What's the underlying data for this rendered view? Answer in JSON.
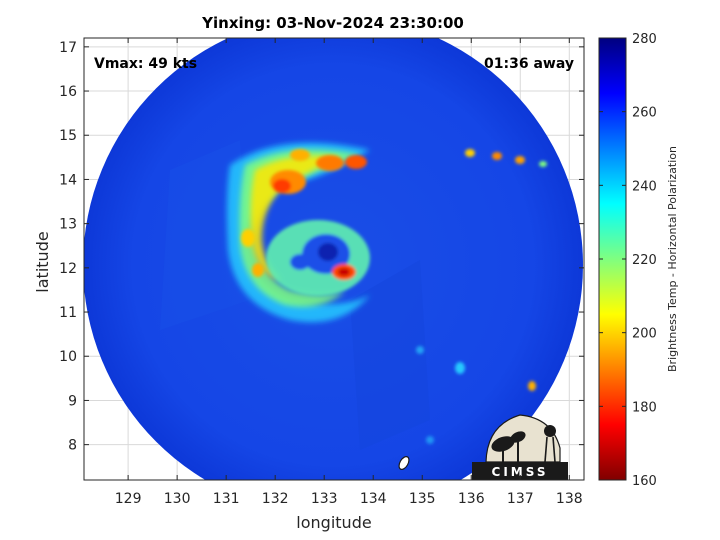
{
  "chart_data": {
    "type": "heatmap",
    "title": "Yinxing: 03-Nov-2024 23:30:00",
    "xlabel": "longitude",
    "ylabel": "latitude",
    "xlim": [
      128.1,
      138.3
    ],
    "ylim": [
      7.2,
      17.2
    ],
    "xticks": [
      129,
      130,
      131,
      132,
      133,
      134,
      135,
      136,
      137,
      138
    ],
    "yticks": [
      8,
      9,
      10,
      11,
      12,
      13,
      14,
      15,
      16,
      17
    ],
    "grid": true,
    "colorbar": {
      "label": "Brightness Temp - Horizontal Polarization",
      "range": [
        160,
        280
      ],
      "ticks": [
        160,
        180,
        200,
        220,
        240,
        260,
        280
      ],
      "colormap": "jet"
    },
    "annotations": {
      "vmax": "Vmax: 49 kts",
      "time_away": "01:36 away"
    },
    "swath": {
      "center_lon": 133.2,
      "center_lat": 12.1
    },
    "features": [
      {
        "name": "eye",
        "lon": 133.0,
        "lat": 12.2,
        "value": 258
      },
      {
        "name": "eyewall max",
        "lon": 133.3,
        "lat": 11.9,
        "value": 182
      },
      {
        "name": "northern band",
        "lon": 133.6,
        "lat": 14.4,
        "value": 195
      },
      {
        "name": "western band",
        "lon": 131.3,
        "lat": 12.8,
        "value": 210
      },
      {
        "name": "convection core",
        "lon": 132.4,
        "lat": 14.0,
        "value": 190
      },
      {
        "name": "eastern cells",
        "lon": 136.8,
        "lat": 14.5,
        "value": 200
      },
      {
        "name": "southeast cell",
        "lon": 137.2,
        "lat": 9.2,
        "value": 195
      }
    ]
  },
  "logo": {
    "text": "CIMSS"
  }
}
